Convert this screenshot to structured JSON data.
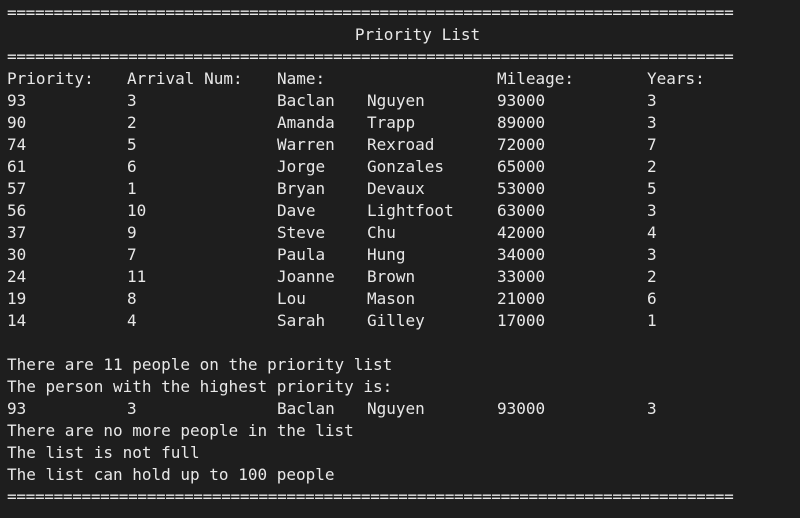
{
  "separator": "==============================================================================",
  "title": "Priority List",
  "headers": {
    "priority": "Priority:",
    "arrival": "Arrival Num:",
    "name": "Name:",
    "mileage": "Mileage:",
    "years": "Years:"
  },
  "rows": [
    {
      "priority": "93",
      "arrival": "3",
      "first": "Baclan",
      "last": "Nguyen",
      "mileage": "93000",
      "years": "3"
    },
    {
      "priority": "90",
      "arrival": "2",
      "first": "Amanda",
      "last": "Trapp",
      "mileage": "89000",
      "years": "3"
    },
    {
      "priority": "74",
      "arrival": "5",
      "first": "Warren",
      "last": "Rexroad",
      "mileage": "72000",
      "years": "7"
    },
    {
      "priority": "61",
      "arrival": "6",
      "first": "Jorge",
      "last": "Gonzales",
      "mileage": "65000",
      "years": "2"
    },
    {
      "priority": "57",
      "arrival": "1",
      "first": "Bryan",
      "last": "Devaux",
      "mileage": "53000",
      "years": "5"
    },
    {
      "priority": "56",
      "arrival": "10",
      "first": "Dave",
      "last": "Lightfoot",
      "mileage": "63000",
      "years": "3"
    },
    {
      "priority": "37",
      "arrival": "9",
      "first": "Steve",
      "last": "Chu",
      "mileage": "42000",
      "years": "4"
    },
    {
      "priority": "30",
      "arrival": "7",
      "first": "Paula",
      "last": "Hung",
      "mileage": "34000",
      "years": "3"
    },
    {
      "priority": "24",
      "arrival": "11",
      "first": "Joanne",
      "last": "Brown",
      "mileage": "33000",
      "years": "2"
    },
    {
      "priority": "19",
      "arrival": "8",
      "first": "Lou",
      "last": "Mason",
      "mileage": "21000",
      "years": "6"
    },
    {
      "priority": "14",
      "arrival": "4",
      "first": "Sarah",
      "last": "Gilley",
      "mileage": "17000",
      "years": "1"
    }
  ],
  "messages": {
    "count": "There are 11 people on the priority list",
    "highest_label": "The person with the highest priority is:",
    "highest": {
      "priority": "93",
      "arrival": "3",
      "first": "Baclan",
      "last": "Nguyen",
      "mileage": "93000",
      "years": "3"
    },
    "no_more": "There are no more people in the list",
    "not_full": "The list is not full",
    "capacity": "The list can hold up to 100 people"
  }
}
